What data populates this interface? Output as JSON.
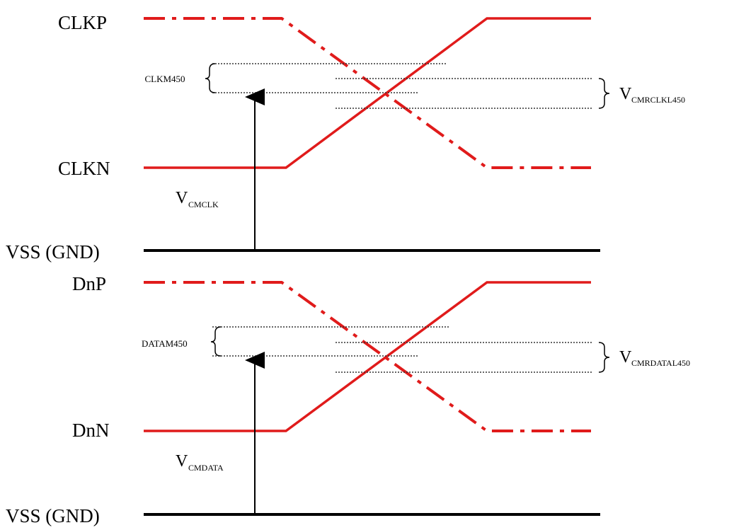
{
  "signals": {
    "clkp": "CLKP",
    "clkn": "CLKN",
    "dnp": "DnP",
    "dnn": "DnN",
    "vss_top": "VSS (GND)",
    "vss_bottom": "VSS (GND)"
  },
  "annotations": {
    "clk_left_range": " CLKM450",
    "clk_right_main": "V",
    "clk_right_sub": "CMRCLKL450",
    "clk_vcm_main": "V",
    "clk_vcm_sub": "CMCLK",
    "data_left_range": "DATAM450",
    "data_right_main": "V",
    "data_right_sub": "CMRDATAL450",
    "data_vcm_main": "V",
    "data_vcm_sub": "CMDATA"
  },
  "colors": {
    "signal": "#e01b1b",
    "ground": "#000000",
    "dotted": "#333333"
  }
}
